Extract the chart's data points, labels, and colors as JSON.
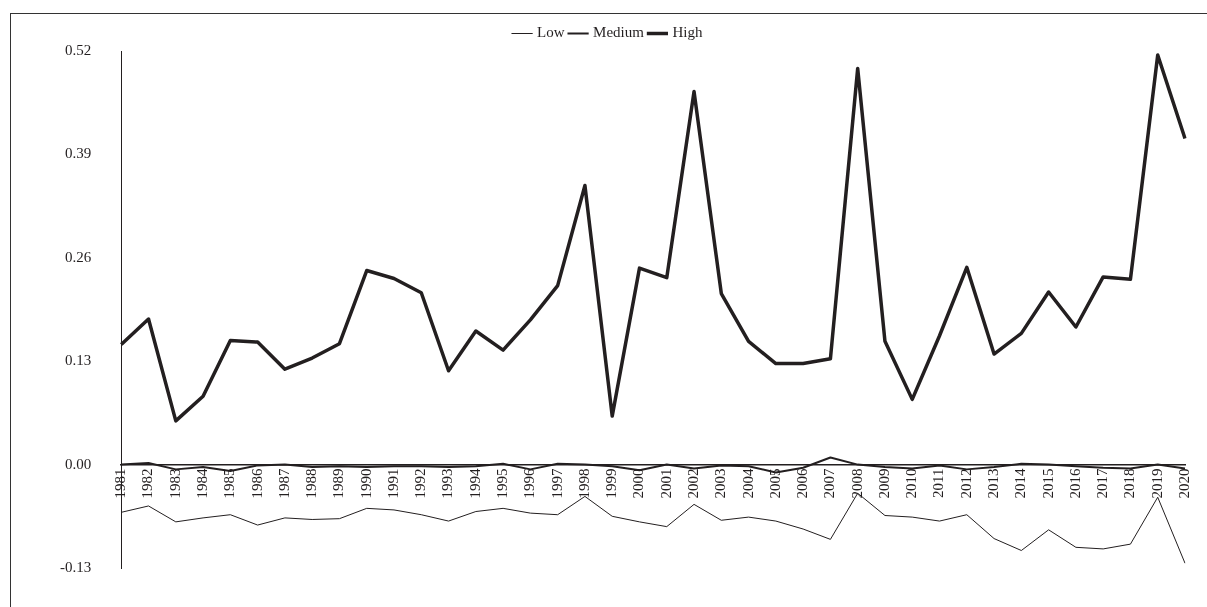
{
  "chart_data": {
    "type": "line",
    "categories": [
      "1981",
      "1982",
      "1983",
      "1984",
      "1985",
      "1986",
      "1987",
      "1988",
      "1989",
      "1990",
      "1991",
      "1992",
      "1993",
      "1994",
      "1995",
      "1996",
      "1997",
      "1998",
      "1999",
      "2000",
      "2001",
      "2002",
      "2003",
      "2004",
      "2005",
      "2006",
      "2007",
      "2008",
      "2009",
      "2010",
      "2011",
      "2012",
      "2013",
      "2014",
      "2015",
      "2016",
      "2017",
      "2018",
      "2019",
      "2020"
    ],
    "series": [
      {
        "name": "Low",
        "color": "#231f20",
        "values": [
          -0.06,
          -0.052,
          -0.072,
          -0.067,
          -0.063,
          -0.076,
          -0.067,
          -0.069,
          -0.068,
          -0.055,
          -0.057,
          -0.063,
          -0.071,
          -0.059,
          -0.055,
          -0.061,
          -0.063,
          -0.04,
          -0.065,
          -0.072,
          -0.078,
          -0.05,
          -0.07,
          -0.066,
          -0.071,
          -0.081,
          -0.094,
          -0.036,
          -0.064,
          -0.066,
          -0.071,
          -0.063,
          -0.093,
          -0.108,
          -0.082,
          -0.104,
          -0.106,
          -0.1,
          -0.041,
          -0.124
        ]
      },
      {
        "name": "Medium",
        "color": "#231f20",
        "values": [
          0.0,
          0.002,
          -0.006,
          -0.003,
          -0.008,
          -0.001,
          0.0,
          -0.003,
          -0.002,
          -0.003,
          -0.002,
          -0.002,
          -0.003,
          -0.002,
          0.001,
          -0.006,
          0.001,
          0.0,
          -0.002,
          -0.007,
          0.0,
          -0.005,
          -0.001,
          -0.002,
          -0.01,
          -0.004,
          0.009,
          0.0,
          -0.003,
          -0.005,
          -0.001,
          -0.006,
          -0.003,
          0.001,
          0.0,
          -0.002,
          -0.004,
          -0.005,
          0.0,
          -0.005
        ]
      },
      {
        "name": "High",
        "color": "#231f20",
        "values": [
          0.151,
          0.183,
          0.055,
          0.086,
          0.156,
          0.154,
          0.12,
          0.134,
          0.152,
          0.244,
          0.234,
          0.216,
          0.118,
          0.168,
          0.144,
          0.182,
          0.225,
          0.351,
          0.061,
          0.247,
          0.235,
          0.469,
          0.215,
          0.155,
          0.127,
          0.127,
          0.133,
          0.498,
          0.155,
          0.082,
          0.162,
          0.248,
          0.139,
          0.165,
          0.217,
          0.173,
          0.236,
          0.233,
          0.515,
          0.41
        ]
      }
    ],
    "ylim": [
      -0.13,
      0.52
    ],
    "yticks": [
      -0.13,
      {
        "value": 0,
        "label": "0.00"
      },
      0.13,
      0.26,
      0.39,
      0.52
    ],
    "grid": false,
    "legend": "top",
    "marker": "none",
    "line_style": "solid"
  }
}
